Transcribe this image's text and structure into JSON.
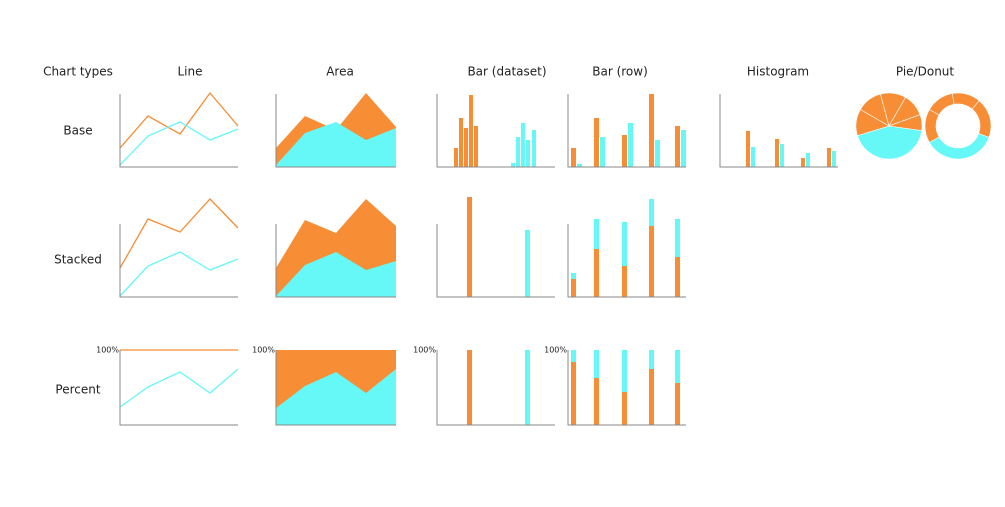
{
  "header": {
    "corner": "Chart types",
    "columns": [
      "Line",
      "Area",
      "Bar (dataset)",
      "Bar (row)",
      "Histogram",
      "Pie/Donut"
    ]
  },
  "rows": [
    "Base",
    "Stacked",
    "Percent"
  ],
  "percent_labels": [
    "100%",
    "100%",
    "100%",
    "100%"
  ]
}
